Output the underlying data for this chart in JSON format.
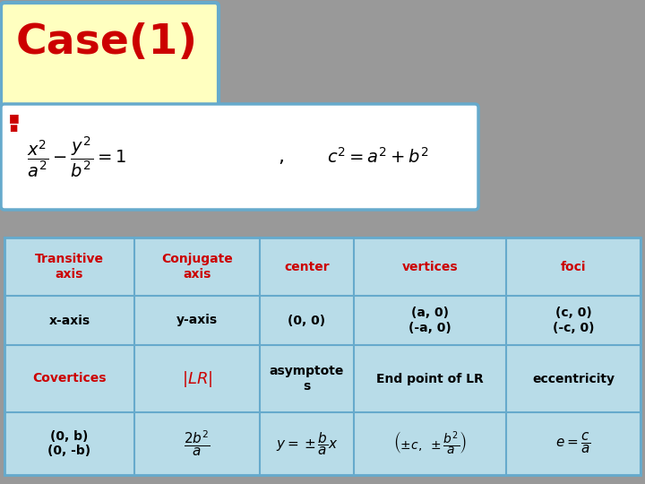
{
  "title": "Case(1)",
  "title_color": "#cc0000",
  "title_box_facecolor": "#ffffc0",
  "title_box_edgecolor": "#66aacc",
  "bg_color": "#999999",
  "formula_box_facecolor": "#ffffff",
  "formula_box_edgecolor": "#66aacc",
  "table_bg_color": "#b8dce8",
  "table_edge_color": "#66aacc",
  "red_dot": "■",
  "formula1": "$\\dfrac{x^2}{a^2} - \\dfrac{y^2}{b^2} = 1$",
  "formula2": "$c^2 = a^2 + b^2$",
  "table_headers": [
    "Transitive\naxis",
    "Conjugate\naxis",
    "center",
    "vertices",
    "foci"
  ],
  "row1": [
    "x-axis",
    "y-axis",
    "(0, 0)",
    "(a, 0)^(-a, 0)",
    "(c, 0)^(-c, 0)"
  ],
  "row2_col0": "Covertices",
  "row2_col1": "$|LR|$",
  "row2_col2": "asymptote\ns",
  "row2_col3": "End point of LR",
  "row2_col4": "eccentricity",
  "row3_col0": "(0, b)^(0, -b)",
  "row3_col1": "$\\dfrac{2b^2}{a}$",
  "row3_col2": "$y = \\pm\\dfrac{b}{a}x$",
  "row3_col3": "$\\left(\\pm c,\\ \\pm\\dfrac{b^2}{a}\\right)$",
  "row3_col4": "$e = \\dfrac{c}{a}$"
}
